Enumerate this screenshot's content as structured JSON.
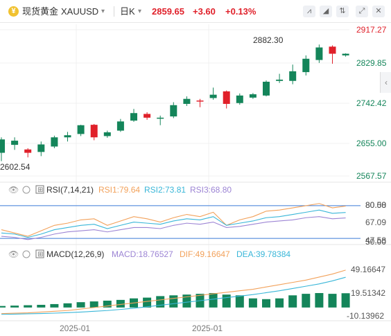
{
  "header": {
    "symbol_cn": "现货黄金",
    "symbol": "XAUUSD",
    "period": "日K",
    "price": "2859.65",
    "change": "+3.60",
    "change_pct": "+0.13%"
  },
  "toolbar_icons": [
    "chart-style-icon",
    "indicator-icon",
    "compare-icon",
    "fullscreen-icon",
    "close-icon"
  ],
  "colors": {
    "up": "#e0202a",
    "down": "#14855a",
    "rsi1": "#f2a15a",
    "rsi2": "#38b6d8",
    "rsi3": "#9c84d4",
    "dif": "#f2a15a",
    "dea": "#38b6d8",
    "macd": "#9c84d4",
    "ref": "#3a7ad8"
  },
  "price_axis": [
    "2917.27",
    "2829.85",
    "2742.42",
    "2655.00",
    "2567.57"
  ],
  "annotations": {
    "high": "2882.30",
    "low": "2602.54"
  },
  "rsi": {
    "title": "RSI(7,14,21)",
    "rsi1": "RSI1:79.64",
    "rsi2": "RSI2:73.81",
    "rsi3": "RSI3:68.80",
    "axis": [
      "80.00",
      "67.09",
      "47.58"
    ],
    "axis_overlap": [
      "80.58",
      "50.00"
    ]
  },
  "macd": {
    "title": "MACD(12,26,9)",
    "macd": "MACD:18.76527",
    "dif": "DIF:49.16647",
    "dea": "DEA:39.78384",
    "axis": [
      "49.16647",
      "19.51342",
      "-10.13962"
    ]
  },
  "time_labels": [
    "2025-01",
    "2025-01"
  ],
  "chart_data": {
    "type": "candlestick",
    "price_ylim": [
      2567.57,
      2917.27
    ],
    "candles": [
      {
        "o": 2623,
        "h": 2660,
        "l": 2603,
        "c": 2655
      },
      {
        "o": 2642,
        "h": 2660,
        "l": 2630,
        "c": 2652
      },
      {
        "o": 2631,
        "h": 2634,
        "l": 2612,
        "c": 2623
      },
      {
        "o": 2625,
        "h": 2650,
        "l": 2615,
        "c": 2643
      },
      {
        "o": 2638,
        "h": 2664,
        "l": 2634,
        "c": 2660
      },
      {
        "o": 2660,
        "h": 2673,
        "l": 2650,
        "c": 2665
      },
      {
        "o": 2668,
        "h": 2690,
        "l": 2663,
        "c": 2689
      },
      {
        "o": 2690,
        "h": 2692,
        "l": 2653,
        "c": 2660
      },
      {
        "o": 2663,
        "h": 2676,
        "l": 2659,
        "c": 2672
      },
      {
        "o": 2676,
        "h": 2704,
        "l": 2673,
        "c": 2698
      },
      {
        "o": 2700,
        "h": 2728,
        "l": 2697,
        "c": 2718
      },
      {
        "o": 2716,
        "h": 2720,
        "l": 2702,
        "c": 2707
      },
      {
        "o": 2707,
        "h": 2712,
        "l": 2689,
        "c": 2707
      },
      {
        "o": 2710,
        "h": 2744,
        "l": 2706,
        "c": 2737
      },
      {
        "o": 2740,
        "h": 2758,
        "l": 2735,
        "c": 2752
      },
      {
        "o": 2748,
        "h": 2752,
        "l": 2732,
        "c": 2746
      },
      {
        "o": 2754,
        "h": 2779,
        "l": 2750,
        "c": 2762
      },
      {
        "o": 2770,
        "h": 2772,
        "l": 2729,
        "c": 2740
      },
      {
        "o": 2742,
        "h": 2765,
        "l": 2738,
        "c": 2760
      },
      {
        "o": 2755,
        "h": 2766,
        "l": 2752,
        "c": 2763
      },
      {
        "o": 2760,
        "h": 2796,
        "l": 2758,
        "c": 2793
      },
      {
        "o": 2795,
        "h": 2812,
        "l": 2790,
        "c": 2798
      },
      {
        "o": 2795,
        "h": 2834,
        "l": 2787,
        "c": 2818
      },
      {
        "o": 2816,
        "h": 2856,
        "l": 2808,
        "c": 2848
      },
      {
        "o": 2845,
        "h": 2882,
        "l": 2838,
        "c": 2875
      },
      {
        "o": 2877,
        "h": 2880,
        "l": 2836,
        "c": 2860
      },
      {
        "o": 2856,
        "h": 2861,
        "l": 2853,
        "c": 2860
      }
    ],
    "rsi_ylim": [
      47.58,
      80.58
    ],
    "rsi_reference": [
      80,
      50
    ],
    "rsi1": [
      58,
      55,
      52,
      57,
      62,
      64,
      67,
      68,
      62,
      66,
      70,
      68,
      65,
      69,
      72,
      70,
      74,
      62,
      67,
      70,
      75,
      76,
      78,
      80,
      82,
      78,
      79.64
    ],
    "rsi2": [
      55,
      54,
      51,
      54,
      58,
      60,
      62,
      63,
      59,
      62,
      65,
      64,
      63,
      66,
      68,
      67,
      70,
      62,
      64,
      66,
      69,
      70,
      72,
      74,
      76,
      73,
      73.81
    ],
    "rsi3": [
      52,
      51,
      49,
      51,
      54,
      56,
      57,
      58,
      56,
      58,
      60,
      60,
      59,
      62,
      64,
      63,
      65,
      60,
      61,
      63,
      65,
      66,
      67,
      69,
      70,
      68,
      68.8
    ],
    "macd_ylim": [
      -10.13962,
      60
    ],
    "dif": [
      -8,
      -7.5,
      -7,
      -6,
      -5,
      -4,
      -2,
      0,
      2,
      4,
      6,
      8,
      10,
      12,
      14,
      16,
      18,
      20,
      22,
      24,
      27,
      30,
      33,
      36,
      40,
      44,
      49.16647
    ],
    "dea": [
      -9,
      -8.7,
      -8.3,
      -7.9,
      -7.4,
      -6.8,
      -6,
      -5,
      -4,
      -2.5,
      -1,
      1,
      3,
      5,
      7,
      9,
      11,
      13,
      15,
      17,
      19.5,
      22,
      25,
      28,
      31,
      35,
      39.78384
    ],
    "macd_hist": [
      2,
      2.5,
      3,
      3.5,
      4.5,
      5.5,
      7,
      8,
      9,
      10,
      12,
      13,
      15,
      16,
      17,
      18,
      19,
      17,
      16,
      12,
      11,
      12,
      16,
      18,
      19,
      18,
      18.76527
    ]
  }
}
